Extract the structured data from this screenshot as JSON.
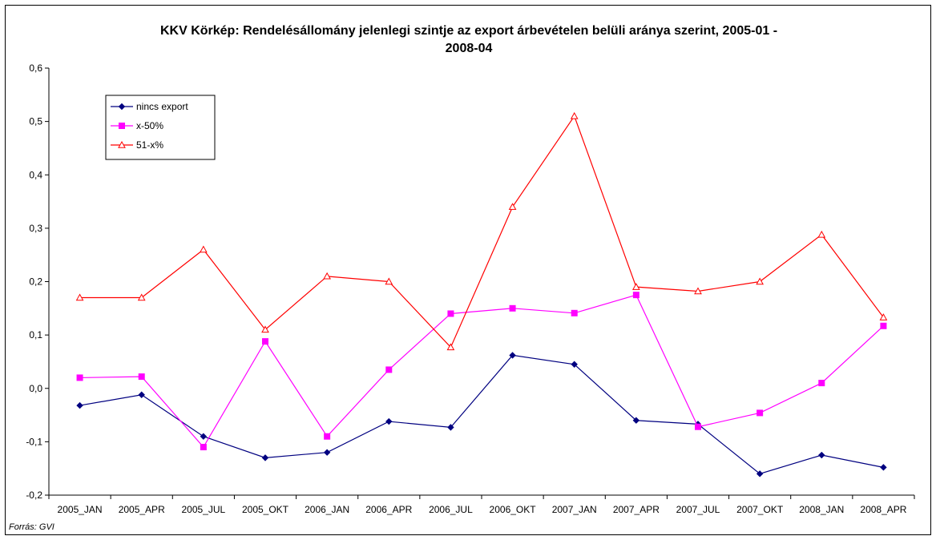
{
  "chart_data": {
    "type": "line",
    "title_lines": [
      "KKV Körkép: Rendelésállomány jelenlegi szintje az export árbevételen belüli aránya szerint, 2005-01 -",
      "2008-04"
    ],
    "categories": [
      "2005_JAN",
      "2005_APR",
      "2005_JUL",
      "2005_OKT",
      "2006_JAN",
      "2006_APR",
      "2006_JUL",
      "2006_OKT",
      "2007_JAN",
      "2007_APR",
      "2007_JUL",
      "2007_OKT",
      "2008_JAN",
      "2008_APR"
    ],
    "ylim": [
      -0.2,
      0.6
    ],
    "yticks": [
      -0.2,
      -0.1,
      0.0,
      0.1,
      0.2,
      0.3,
      0.4,
      0.5,
      0.6
    ],
    "ytick_labels": [
      "-0,2",
      "-0,1",
      "0,0",
      "0,1",
      "0,2",
      "0,3",
      "0,4",
      "0,5",
      "0,6"
    ],
    "grid": false,
    "legend_position": "top-left",
    "series": [
      {
        "name": "nincs export",
        "color": "#000080",
        "marker": "diamond",
        "values": [
          -0.032,
          -0.012,
          -0.09,
          -0.13,
          -0.12,
          -0.062,
          -0.073,
          0.062,
          0.045,
          -0.06,
          -0.067,
          -0.16,
          -0.125,
          -0.148
        ]
      },
      {
        "name": "x-50%",
        "color": "#ff00ff",
        "marker": "square",
        "values": [
          0.02,
          0.022,
          -0.11,
          0.088,
          -0.09,
          0.035,
          0.14,
          0.15,
          0.141,
          0.175,
          -0.072,
          -0.046,
          0.01,
          0.117
        ]
      },
      {
        "name": "51-x%",
        "color": "#ff0000",
        "marker": "triangle",
        "values": [
          0.17,
          0.17,
          0.26,
          0.11,
          0.21,
          0.2,
          0.077,
          0.34,
          0.51,
          0.19,
          0.182,
          0.2,
          0.288,
          0.133
        ]
      }
    ],
    "source": "Forrás: GVI"
  }
}
